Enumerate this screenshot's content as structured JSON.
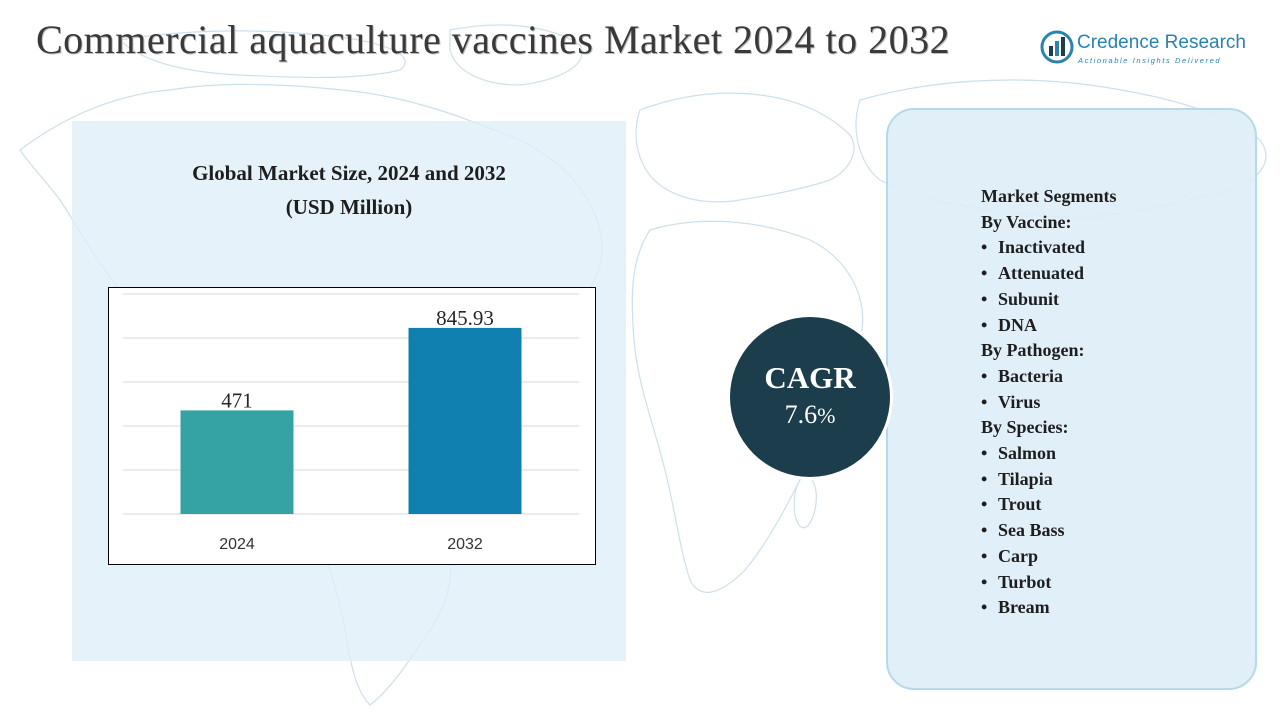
{
  "title": "Commercial aquaculture vaccines Market 2024 to 2032",
  "logo": {
    "name": "Credence Research",
    "tagline": "Actionable Insights Delivered",
    "icon": "credence-logo-icon"
  },
  "colors": {
    "bar_2024": "#35a3a3",
    "bar_2032": "#0f80b0",
    "cagr_circle": "#1b3d4c",
    "panel": "#dfeef8",
    "logo": "#2a82b0"
  },
  "chart_title_line1": "Global Market Size, 2024 and 2032",
  "chart_title_line2": "(USD Million)",
  "chart_data": {
    "type": "bar",
    "title": "Global Market Size, 2024 and 2032 (USD Million)",
    "categories": [
      "2024",
      "2032"
    ],
    "values": [
      471,
      845.93
    ],
    "value_labels": [
      "471",
      "845.93"
    ],
    "ylim": [
      0,
      1000
    ],
    "grid": true,
    "legend": "none"
  },
  "cagr": {
    "label": "CAGR",
    "value": "7.6",
    "unit": "%"
  },
  "segments": {
    "heading": "Market Segments",
    "bullet": "•",
    "groups": [
      {
        "title": "By Vaccine:",
        "items": [
          "Inactivated",
          "Attenuated",
          "Subunit",
          "DNA"
        ]
      },
      {
        "title": "By Pathogen:",
        "items": [
          "Bacteria",
          "Virus"
        ]
      },
      {
        "title": "By Species:",
        "items": [
          "Salmon",
          "Tilapia",
          "Trout",
          "Sea Bass",
          "Carp",
          "Turbot",
          "Bream"
        ]
      }
    ]
  }
}
